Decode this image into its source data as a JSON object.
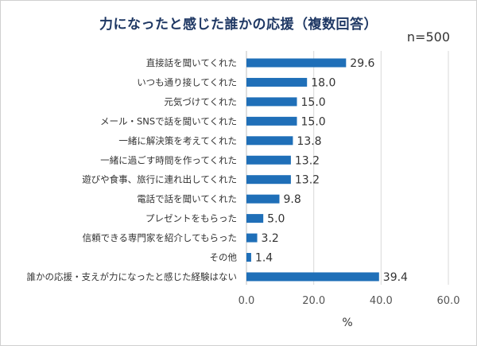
{
  "title": "力になったと感じた誰かの応援（複数回答）",
  "sample_size": "n=500",
  "chart_data": {
    "type": "bar",
    "orientation": "horizontal",
    "title": "力になったと感じた誰かの応援（複数回答）",
    "categories": [
      "直接話を聞いてくれた",
      "いつも通り接してくれた",
      "元気づけてくれた",
      "メール・SNSで話を聞いてくれた",
      "一緒に解決策を考えてくれた",
      "一緒に過ごす時間を作ってくれた",
      "遊びや食事、旅行に連れ出してくれた",
      "電話で話を聞いてくれた",
      "プレゼントをもらった",
      "信頼できる専門家を紹介してもらった",
      "その他",
      "誰かの応援・支えが力になったと感じた経験はない"
    ],
    "values": [
      29.6,
      18.0,
      15.0,
      15.0,
      13.8,
      13.2,
      13.2,
      9.8,
      5.0,
      3.2,
      1.4,
      39.4
    ],
    "value_labels": [
      "29.6",
      "18.0",
      "15.0",
      "15.0",
      "13.8",
      "13.2",
      "13.2",
      "9.8",
      "5.0",
      "3.2",
      "1.4",
      "39.4"
    ],
    "xlim": [
      0,
      60
    ],
    "xticks": [
      "0.0",
      "20.0",
      "40.0",
      "60.0"
    ],
    "xlabel": "%",
    "ylabel": "",
    "grid": true,
    "bar_color": "#1f6fb8"
  }
}
